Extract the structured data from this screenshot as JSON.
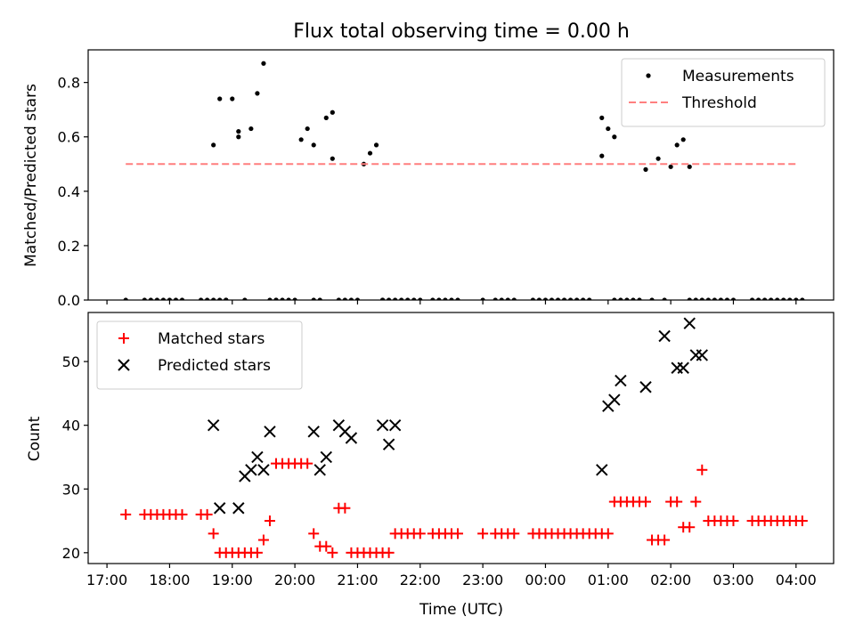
{
  "chart_data": [
    {
      "type": "scatter",
      "title": "Flux total observing time = 0.00 h",
      "ylabel": "Matched/Predicted stars",
      "xlabel": "",
      "xlim": [
        16.7,
        28.6
      ],
      "ylim": [
        0,
        0.92
      ],
      "x_ticks": [
        17,
        18,
        19,
        20,
        21,
        22,
        23,
        24,
        25,
        26,
        27,
        28
      ],
      "x_tick_labels": [
        "",
        "",
        "",
        "",
        "",
        "",
        "",
        "",
        "",
        "",
        "",
        ""
      ],
      "y_ticks": [
        0,
        0.2,
        0.4,
        0.6,
        0.8
      ],
      "y_tick_labels": [
        "0.0",
        "0.2",
        "0.4",
        "0.6",
        "0.8"
      ],
      "legend_position": "top-right",
      "legend": [
        "Measurements",
        "Threshold"
      ],
      "series": [
        {
          "name": "Measurements",
          "marker": "dot",
          "color": "#000000",
          "x": [
            17.3,
            17.6,
            17.7,
            17.8,
            17.9,
            18.0,
            18.1,
            18.2,
            18.5,
            18.6,
            18.7,
            18.7,
            18.8,
            18.8,
            18.9,
            18.9,
            19.0,
            19.1,
            19.1,
            19.2,
            19.3,
            19.4,
            19.5,
            19.6,
            19.7,
            19.7,
            19.8,
            19.9,
            20.0,
            20.1,
            20.2,
            20.3,
            20.3,
            20.4,
            20.5,
            20.6,
            20.6,
            20.7,
            20.8,
            20.9,
            21.0,
            21.1,
            21.2,
            21.3,
            21.4,
            21.4,
            21.5,
            21.6,
            21.7,
            21.8,
            21.9,
            22.0,
            22.2,
            22.3,
            22.4,
            22.5,
            22.6,
            23.0,
            23.2,
            23.3,
            23.4,
            23.5,
            23.8,
            23.9,
            24.0,
            24.1,
            24.2,
            24.3,
            24.4,
            24.5,
            24.6,
            24.7,
            24.9,
            24.9,
            25.0,
            25.1,
            25.1,
            25.2,
            25.3,
            25.4,
            25.5,
            25.6,
            25.7,
            25.8,
            25.9,
            26.0,
            26.1,
            26.2,
            26.3,
            26.3,
            26.4,
            26.5,
            26.6,
            26.7,
            26.8,
            26.9,
            27.0,
            27.3,
            27.4,
            27.5,
            27.6,
            27.7,
            27.8,
            27.9,
            28.0,
            28.1
          ],
          "y": [
            0,
            0,
            0,
            0,
            0,
            0,
            0,
            0,
            0,
            0,
            0.57,
            0,
            0.74,
            0,
            0,
            0,
            0.74,
            0.62,
            0.6,
            0,
            0.63,
            0.76,
            0.87,
            0,
            0,
            0,
            0,
            0,
            0,
            0.59,
            0.63,
            0,
            0.57,
            0,
            0.67,
            0.69,
            0.52,
            0,
            0,
            0,
            0,
            0.5,
            0.54,
            0.57,
            0,
            0,
            0,
            0,
            0,
            0,
            0,
            0,
            0,
            0,
            0,
            0,
            0,
            0,
            0,
            0,
            0,
            0,
            0,
            0,
            0,
            0,
            0,
            0,
            0,
            0,
            0,
            0,
            0.67,
            0.53,
            0.63,
            0.6,
            0,
            0,
            0,
            0,
            0,
            0.48,
            0,
            0.52,
            0,
            0.49,
            0.57,
            0.59,
            0,
            0.49,
            0,
            0,
            0,
            0,
            0,
            0,
            0,
            0,
            0,
            0,
            0,
            0,
            0,
            0,
            0,
            0
          ]
        },
        {
          "name": "Threshold",
          "marker": "dashed-line",
          "color": "#ff7f7f",
          "x": [
            17.3,
            28.0
          ],
          "y": [
            0.5,
            0.5
          ]
        }
      ]
    },
    {
      "type": "scatter",
      "title": "",
      "ylabel": "Count",
      "xlabel": "Time (UTC)",
      "xlim": [
        16.7,
        28.6
      ],
      "ylim": [
        18.3,
        57.7
      ],
      "x_ticks": [
        17,
        18,
        19,
        20,
        21,
        22,
        23,
        24,
        25,
        26,
        27,
        28
      ],
      "x_tick_labels": [
        "17:00",
        "18:00",
        "19:00",
        "20:00",
        "21:00",
        "22:00",
        "23:00",
        "00:00",
        "01:00",
        "02:00",
        "03:00",
        "04:00"
      ],
      "y_ticks": [
        20,
        30,
        40,
        50
      ],
      "y_tick_labels": [
        "20",
        "30",
        "40",
        "50"
      ],
      "legend_position": "top-left",
      "legend": [
        "Matched stars",
        "Predicted stars"
      ],
      "series": [
        {
          "name": "Matched stars",
          "marker": "plus",
          "color": "#ff0000",
          "x": [
            17.3,
            17.6,
            17.7,
            17.8,
            17.9,
            18.0,
            18.1,
            18.2,
            18.5,
            18.6,
            18.7,
            18.8,
            18.9,
            19.0,
            19.1,
            19.2,
            19.3,
            19.4,
            19.5,
            19.6,
            19.7,
            19.8,
            19.9,
            20.0,
            20.1,
            20.2,
            20.3,
            20.4,
            20.5,
            20.6,
            20.7,
            20.8,
            20.9,
            21.0,
            21.1,
            21.2,
            21.3,
            21.4,
            21.5,
            21.6,
            21.7,
            21.8,
            21.9,
            22.0,
            22.2,
            22.3,
            22.4,
            22.5,
            22.6,
            23.0,
            23.2,
            23.3,
            23.4,
            23.5,
            23.8,
            23.9,
            24.0,
            24.1,
            24.2,
            24.3,
            24.4,
            24.5,
            24.6,
            24.7,
            24.8,
            24.9,
            25.0,
            25.1,
            25.2,
            25.3,
            25.4,
            25.5,
            25.6,
            25.7,
            25.8,
            25.9,
            26.0,
            26.1,
            26.2,
            26.3,
            26.4,
            26.5,
            26.6,
            26.7,
            26.8,
            26.9,
            27.0,
            27.3,
            27.4,
            27.5,
            27.6,
            27.7,
            27.8,
            27.9,
            28.0,
            28.1
          ],
          "y": [
            26,
            26,
            26,
            26,
            26,
            26,
            26,
            26,
            26,
            26,
            23,
            20,
            20,
            20,
            20,
            20,
            20,
            20,
            22,
            25,
            34,
            34,
            34,
            34,
            34,
            34,
            23,
            21,
            21,
            20,
            27,
            27,
            20,
            20,
            20,
            20,
            20,
            20,
            20,
            23,
            23,
            23,
            23,
            23,
            23,
            23,
            23,
            23,
            23,
            23,
            23,
            23,
            23,
            23,
            23,
            23,
            23,
            23,
            23,
            23,
            23,
            23,
            23,
            23,
            23,
            23,
            23,
            28,
            28,
            28,
            28,
            28,
            28,
            22,
            22,
            22,
            28,
            28,
            24,
            24,
            28,
            33,
            25,
            25,
            25,
            25,
            25,
            25,
            25,
            25,
            25,
            25,
            25,
            25,
            25,
            25
          ]
        },
        {
          "name": "Predicted stars",
          "marker": "x",
          "color": "#000000",
          "x": [
            18.7,
            18.8,
            19.1,
            19.2,
            19.3,
            19.4,
            19.5,
            19.6,
            20.3,
            20.4,
            20.5,
            20.7,
            20.8,
            20.9,
            21.4,
            21.5,
            21.6,
            24.9,
            25.0,
            25.1,
            25.2,
            25.6,
            25.9,
            26.1,
            26.2,
            26.3,
            26.4,
            26.5
          ],
          "y": [
            40,
            27,
            27,
            32,
            33,
            35,
            33,
            39,
            39,
            33,
            35,
            40,
            39,
            38,
            40,
            37,
            40,
            33,
            43,
            44,
            47,
            46,
            54,
            49,
            49,
            56,
            51,
            51
          ]
        }
      ]
    }
  ]
}
